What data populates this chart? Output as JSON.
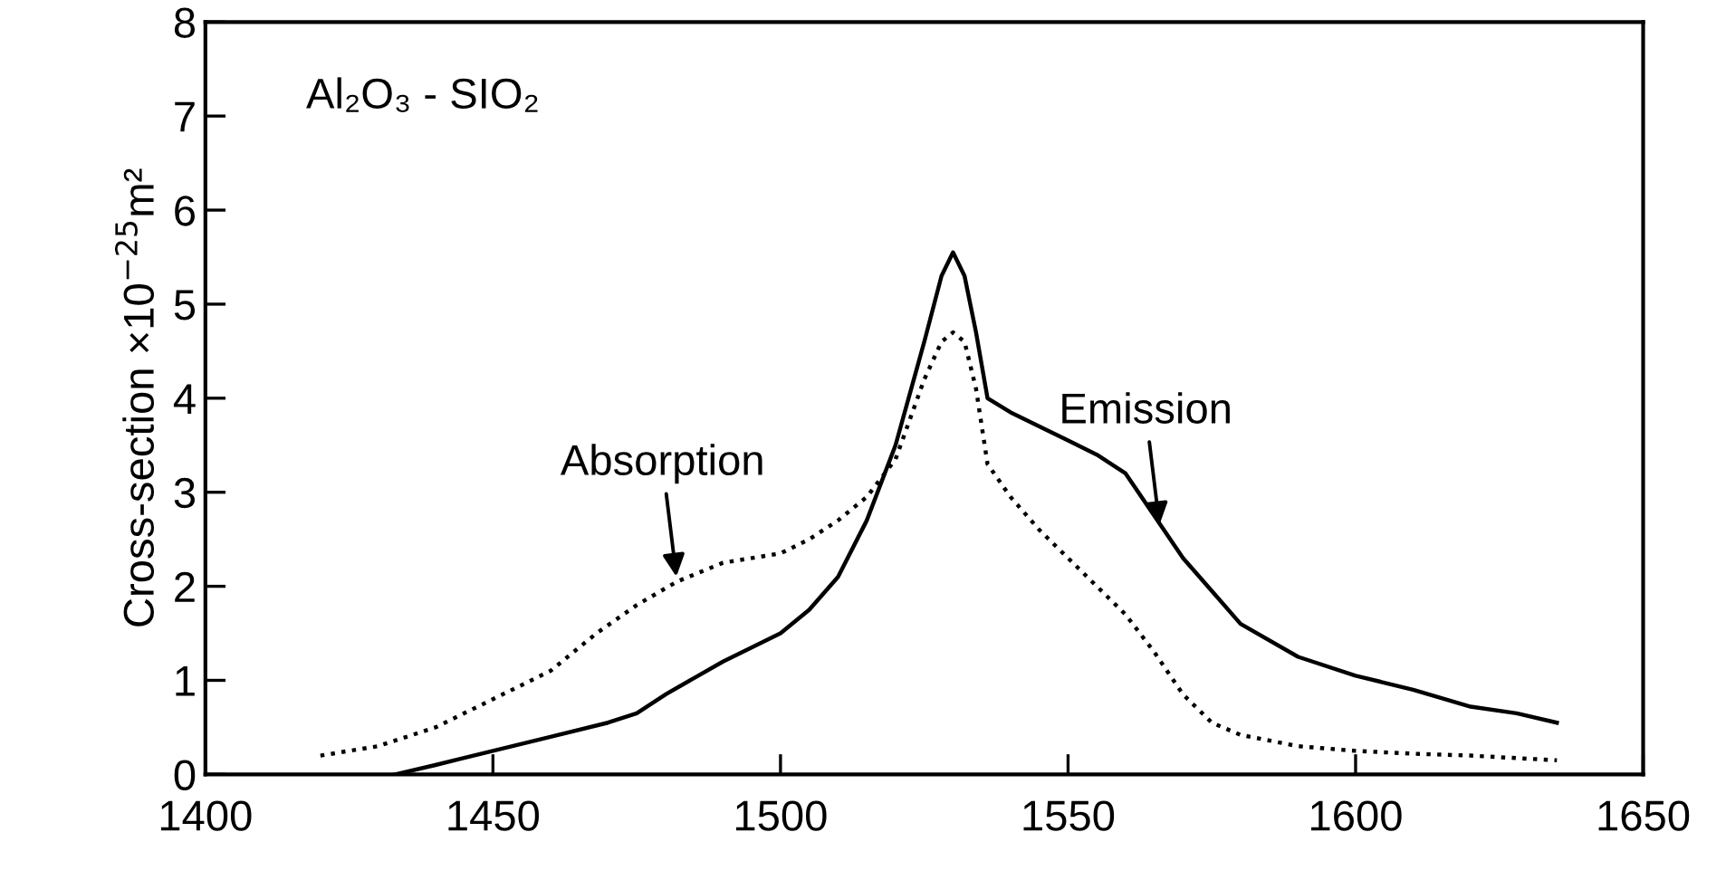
{
  "chart_data": {
    "type": "line",
    "ylabel": "Cross-section ×10$^{−25}$m²",
    "xlim": [
      1400,
      1650
    ],
    "xticks": [
      1400,
      1450,
      1500,
      1550,
      1600,
      1650
    ],
    "ylim": [
      0,
      8
    ],
    "yticks": [
      0,
      1,
      2,
      3,
      4,
      5,
      6,
      7,
      8
    ],
    "grid": false,
    "legend": false,
    "annotations": [
      "Al₂O₃ - SIO₂",
      {
        "text": "Absorption",
        "x": 1482,
        "y": 2.05
      },
      {
        "text": "Emission",
        "x": 1566,
        "y": 2.6
      }
    ],
    "series": [
      {
        "color": "#000000",
        "line_style": "dotted",
        "x": [
          1420,
          1430,
          1440,
          1450,
          1460,
          1468,
          1475,
          1482,
          1490,
          1500,
          1505,
          1510,
          1515,
          1520,
          1525,
          1528,
          1530,
          1532,
          1534,
          1536,
          1540,
          1545,
          1550,
          1555,
          1560,
          1565,
          1570,
          1575,
          1580,
          1590,
          1600,
          1610,
          1620,
          1635
        ],
        "values": [
          0.2,
          0.3,
          0.5,
          0.8,
          1.1,
          1.5,
          1.8,
          2.05,
          2.25,
          2.35,
          2.5,
          2.7,
          2.95,
          3.35,
          4.2,
          4.6,
          4.7,
          4.6,
          4.1,
          3.3,
          2.95,
          2.6,
          2.3,
          2.0,
          1.7,
          1.3,
          0.85,
          0.55,
          0.42,
          0.3,
          0.25,
          0.22,
          0.2,
          0.15
        ]
      },
      {
        "color": "#000000",
        "line_style": "solid",
        "x": [
          1433,
          1440,
          1450,
          1460,
          1470,
          1475,
          1480,
          1490,
          1500,
          1505,
          1510,
          1515,
          1520,
          1525,
          1528,
          1530,
          1532,
          1534,
          1536,
          1540,
          1545,
          1550,
          1555,
          1560,
          1565,
          1570,
          1575,
          1580,
          1590,
          1600,
          1610,
          1620,
          1628,
          1635
        ],
        "values": [
          0,
          0.1,
          0.25,
          0.4,
          0.55,
          0.65,
          0.85,
          1.2,
          1.5,
          1.75,
          2.1,
          2.7,
          3.5,
          4.6,
          5.3,
          5.55,
          5.3,
          4.7,
          4.0,
          3.85,
          3.7,
          3.55,
          3.4,
          3.2,
          2.75,
          2.3,
          1.95,
          1.6,
          1.25,
          1.05,
          0.9,
          0.72,
          0.65,
          0.55
        ]
      }
    ]
  }
}
